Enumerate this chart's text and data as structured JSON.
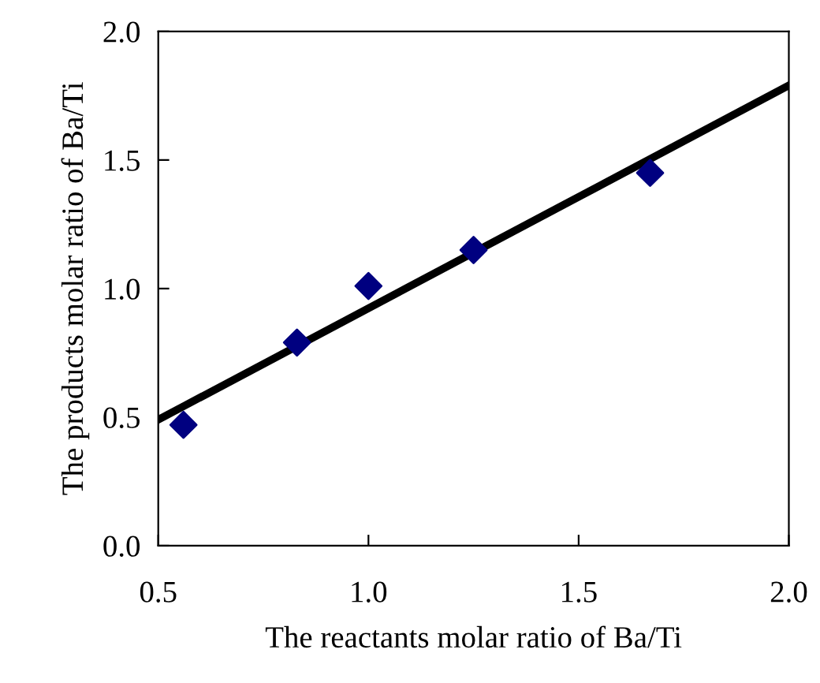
{
  "chart_data": {
    "type": "scatter",
    "xlabel": "The reactants molar ratio of Ba/Ti",
    "ylabel": "The products molar ratio of Ba/Ti",
    "series": [
      {
        "x": [
          0.56,
          0.83,
          1.0,
          1.25,
          1.67
        ],
        "values": [
          0.47,
          0.79,
          1.01,
          1.15,
          1.45
        ],
        "color": "#000080",
        "marker": "diamond"
      },
      {
        "type": "line",
        "x": [
          0.5,
          2.0
        ],
        "values": [
          0.49,
          1.79
        ],
        "color": "#000000",
        "marker": "none",
        "line_style": "solid"
      }
    ],
    "xlim": [
      0.5,
      2.0
    ],
    "ylim": [
      0.0,
      2.0
    ],
    "xticks": [
      {
        "value": 0.5,
        "label": "0.5"
      },
      {
        "value": 1.0,
        "label": "1.0"
      },
      {
        "value": 1.5,
        "label": "1.5"
      },
      {
        "value": 2.0,
        "label": "2.0"
      }
    ],
    "yticks": [
      {
        "value": 0.0,
        "label": "0.0"
      },
      {
        "value": 0.5,
        "label": "0.5"
      },
      {
        "value": 1.0,
        "label": "1.0"
      },
      {
        "value": 1.5,
        "label": "1.5"
      },
      {
        "value": 2.0,
        "label": "2.0"
      }
    ],
    "grid": false,
    "legend": false
  }
}
